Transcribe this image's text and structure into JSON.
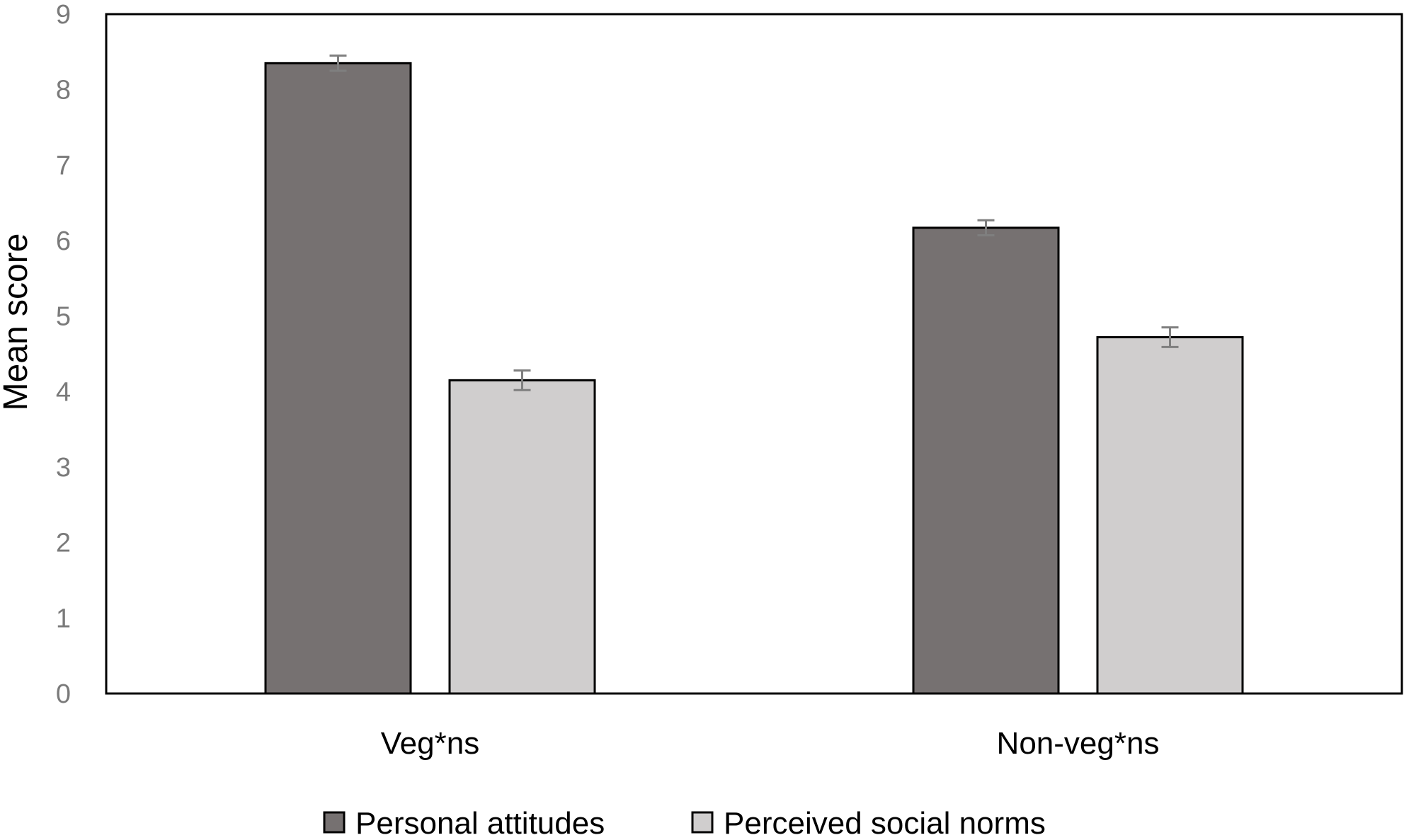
{
  "chart_data": {
    "type": "bar",
    "title": "",
    "xlabel": "",
    "ylabel": "Mean score",
    "ylim": [
      0,
      9
    ],
    "yticks": [
      "0",
      "1",
      "2",
      "3",
      "4",
      "5",
      "6",
      "7",
      "8",
      "9"
    ],
    "categories": [
      "Veg*ns",
      "Non-veg*ns"
    ],
    "series": [
      {
        "name": "Personal attitudes",
        "color": "#767171",
        "values": [
          8.35,
          6.17
        ],
        "errors": [
          0.1,
          0.1
        ]
      },
      {
        "name": "Perceived social norms",
        "color": "#d0cece",
        "values": [
          4.15,
          4.72
        ],
        "errors": [
          0.13,
          0.13
        ]
      }
    ],
    "legend_position": "bottom",
    "grid": false
  }
}
